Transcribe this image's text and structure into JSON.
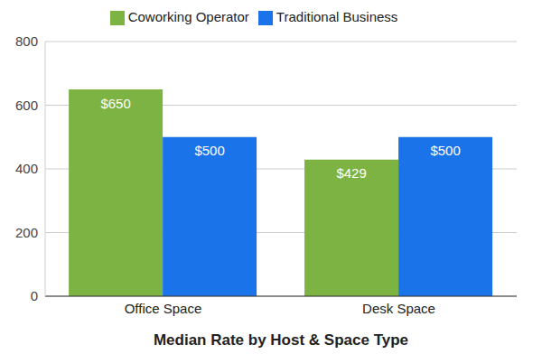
{
  "chart_data": {
    "type": "bar",
    "xlabel": "Median Rate by Host & Space Type",
    "categories": [
      "Office Space",
      "Desk Space"
    ],
    "series": [
      {
        "name": "Coworking Operator",
        "color": "#7cb342",
        "values": [
          650,
          429
        ],
        "value_labels": [
          "$650",
          "$429"
        ]
      },
      {
        "name": "Traditional Business",
        "color": "#1a73e8",
        "values": [
          500,
          500
        ],
        "value_labels": [
          "$500",
          "$500"
        ]
      }
    ],
    "ylim": [
      0,
      800
    ],
    "yticks": [
      0,
      200,
      400,
      600,
      800
    ],
    "grid": true,
    "legend": "top",
    "data_labels": true
  }
}
